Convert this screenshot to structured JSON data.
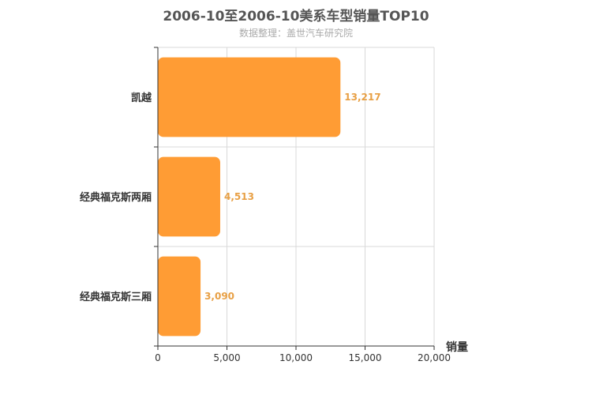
{
  "chart_data": {
    "type": "bar",
    "orientation": "horizontal",
    "title": "2006-10至2006-10美系车型销量TOP10",
    "subtitle": "数据整理：盖世汽车研究院",
    "categories": [
      "凯越",
      "经典福克斯两厢",
      "经典福克斯三厢"
    ],
    "values": [
      13217,
      4513,
      3090
    ],
    "value_labels": [
      "13,217",
      "4,513",
      "3,090"
    ],
    "xlabel": "销量",
    "ylabel": "",
    "xlim": [
      0,
      20000
    ],
    "xticks": [
      0,
      5000,
      10000,
      15000,
      20000
    ],
    "xtick_labels": [
      "0",
      "5,000",
      "10,000",
      "15,000",
      "20,000"
    ],
    "grid": true,
    "colors": {
      "bar": "#ff9c34",
      "data_label": "#e8a045",
      "grid": "#d9d9d9",
      "axis": "#333333"
    }
  }
}
